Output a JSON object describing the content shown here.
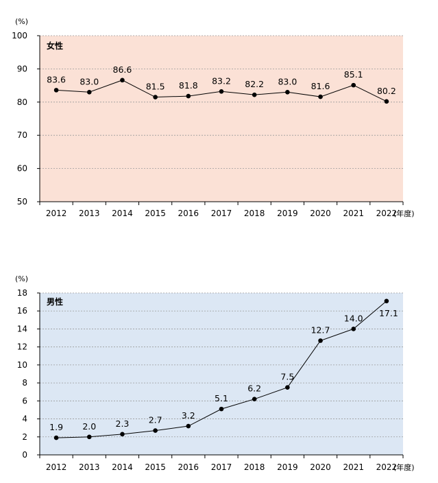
{
  "chart_data": [
    {
      "type": "line",
      "panel_label": "女性",
      "y_unit": "(%)",
      "x_unit": "(年度)",
      "categories": [
        "2012",
        "2013",
        "2014",
        "2015",
        "2016",
        "2017",
        "2018",
        "2019",
        "2020",
        "2021",
        "2022"
      ],
      "series": [
        {
          "name": "女性",
          "values": [
            83.6,
            83.0,
            86.6,
            81.5,
            81.8,
            83.2,
            82.2,
            83.0,
            81.6,
            85.1,
            80.2
          ]
        }
      ],
      "value_labels": [
        "83.6",
        "83.0",
        "86.6",
        "81.5",
        "81.8",
        "83.2",
        "82.2",
        "83.0",
        "81.6",
        "85.1",
        "80.2"
      ],
      "ylim": [
        50,
        100
      ],
      "yticks": [
        50,
        60,
        70,
        80,
        90,
        100
      ],
      "grid": true,
      "background": "#fbe1d6"
    },
    {
      "type": "line",
      "panel_label": "男性",
      "y_unit": "(%)",
      "x_unit": "(年度)",
      "categories": [
        "2012",
        "2013",
        "2014",
        "2015",
        "2016",
        "2017",
        "2018",
        "2019",
        "2020",
        "2021",
        "2022"
      ],
      "series": [
        {
          "name": "男性",
          "values": [
            1.9,
            2.0,
            2.3,
            2.7,
            3.2,
            5.1,
            6.2,
            7.5,
            12.7,
            14.0,
            17.1
          ]
        }
      ],
      "value_labels": [
        "1.9",
        "2.0",
        "2.3",
        "2.7",
        "3.2",
        "5.1",
        "6.2",
        "7.5",
        "12.7",
        "14.0",
        "17.1"
      ],
      "ylim": [
        0,
        18
      ],
      "yticks": [
        0,
        2,
        4,
        6,
        8,
        10,
        12,
        14,
        16,
        18
      ],
      "grid": true,
      "background": "#dce7f4"
    }
  ]
}
